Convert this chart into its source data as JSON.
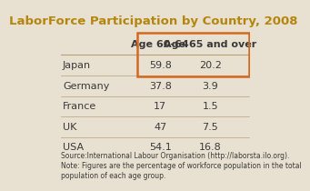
{
  "title": "LaborForce Participation by Country, 2008",
  "title_color": "#b5860d",
  "background_color": "#e8e0d0",
  "header_col1": "Age 60-64",
  "header_col2": "Age 65 and over",
  "countries": [
    "Japan",
    "Germany",
    "France",
    "UK",
    "USA"
  ],
  "values_60_64": [
    59.8,
    37.8,
    17,
    47,
    54.1
  ],
  "values_65_over": [
    20.2,
    3.9,
    1.5,
    7.5,
    16.8
  ],
  "highlight_color": "#d4691e",
  "divider_color": "#b5a07a",
  "text_color": "#3a3a3a",
  "source_text": "Source:International Labour Organisation (http://laborsta.ilo.org).\nNote: Figures are the percentage of workforce population in the total\npopulation of each age group.",
  "source_fontsize": 5.5,
  "title_fontsize": 9.5,
  "header_fontsize": 8,
  "data_fontsize": 8,
  "country_fontsize": 8
}
